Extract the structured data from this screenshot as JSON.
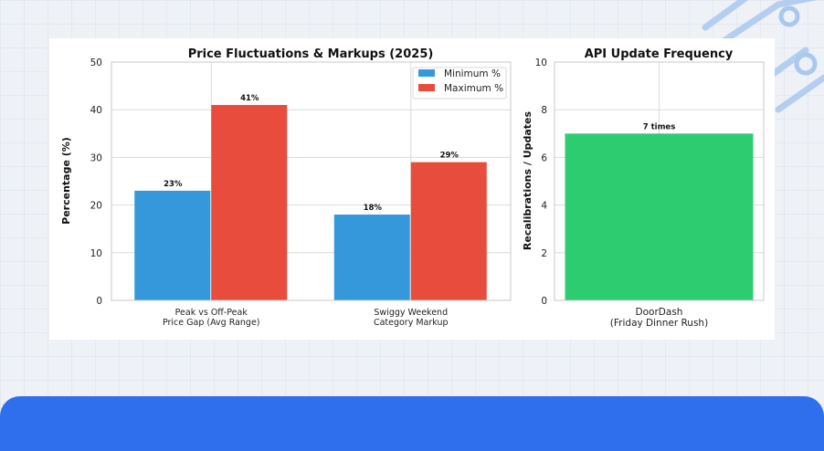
{
  "colors": {
    "minimum": "#3498db",
    "maximum": "#e74c3c",
    "updates": "#2ecc71",
    "banner": "#2f6fed"
  },
  "chart_data": [
    {
      "type": "bar",
      "title": "Price Fluctuations & Markups (2025)",
      "xlabel": "",
      "ylabel": "Percentage (%)",
      "ylim": [
        0,
        50
      ],
      "yticks": [
        "0",
        "10",
        "20",
        "30",
        "40",
        "50"
      ],
      "categories": [
        [
          "Peak vs Off-Peak",
          "Price Gap (Avg Range)"
        ],
        [
          "Swiggy Weekend",
          "Category Markup"
        ]
      ],
      "series": [
        {
          "name": "Minimum %",
          "values": [
            23,
            18
          ],
          "labels": [
            "23%",
            "18%"
          ],
          "color": "#3498db"
        },
        {
          "name": "Maximum %",
          "values": [
            41,
            29
          ],
          "labels": [
            "41%",
            "29%"
          ],
          "color": "#e74c3c"
        }
      ],
      "grid": true,
      "legend": "top-right"
    },
    {
      "type": "bar",
      "title": "API Update Frequency",
      "xlabel": "",
      "ylabel": "Recalibrations / Updates",
      "ylim": [
        0,
        10
      ],
      "yticks": [
        "0",
        "2",
        "4",
        "6",
        "8",
        "10"
      ],
      "categories": [
        [
          "DoorDash",
          "(Friday Dinner Rush)"
        ]
      ],
      "values": [
        7
      ],
      "labels": [
        "7 times"
      ],
      "color": "#2ecc71",
      "grid": true
    }
  ]
}
